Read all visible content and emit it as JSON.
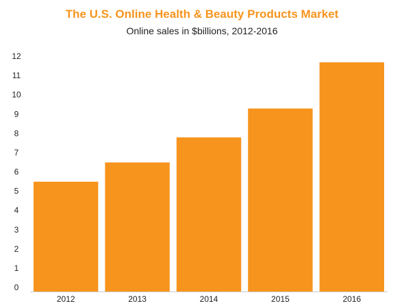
{
  "chart_data": {
    "type": "bar",
    "title": "The U.S. Online Health & Beauty Products Market",
    "subtitle": "Online sales in $billions, 2012-2016",
    "xlabel": "",
    "ylabel": "",
    "categories": [
      "2012",
      "2013",
      "2014",
      "2015",
      "2016"
    ],
    "values": [
      5.7,
      6.7,
      8.0,
      9.5,
      11.9
    ],
    "ylim": [
      0,
      12
    ],
    "yticks": [
      "0",
      "1",
      "2",
      "3",
      "4",
      "5",
      "6",
      "7",
      "8",
      "9",
      "10",
      "11",
      "12"
    ],
    "grid": false,
    "legend": "none",
    "bar_color": "#f7941d",
    "title_color": "#f7941d"
  }
}
